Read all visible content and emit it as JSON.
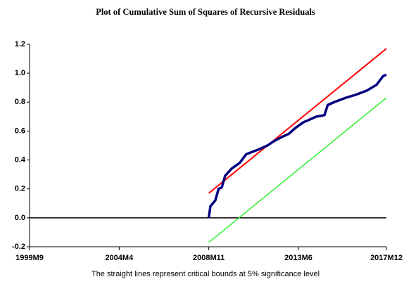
{
  "chart_data": {
    "type": "line",
    "title": "Plot of Cumulative Sum of Squares of Recursive Residuals",
    "note": "The straight lines represent critical bounds at 5% significance level",
    "xlim": [
      0,
      219
    ],
    "xticks": [
      {
        "value": 0,
        "label": "1999M9"
      },
      {
        "value": 55,
        "label": "2004M4"
      },
      {
        "value": 110,
        "label": "2008M11"
      },
      {
        "value": 165,
        "label": "2013M6"
      },
      {
        "value": 219,
        "label": "2017M12"
      }
    ],
    "ylim": [
      -0.2,
      1.2
    ],
    "yticks": [
      -0.2,
      {
        "value": 0,
        "label": "0.0"
      },
      0.2,
      0.4,
      0.6,
      0.8,
      {
        "value": 1,
        "label": "1.0"
      },
      1.2
    ],
    "zero_line": true,
    "series": [
      {
        "color": "#ff0000",
        "width": 2,
        "x": [
          110,
          219
        ],
        "values": [
          0.17,
          1.17
        ]
      },
      {
        "color": "#33ee33",
        "width": 1.5,
        "x": [
          110,
          219
        ],
        "values": [
          -0.17,
          0.83
        ]
      },
      {
        "color": "#000080",
        "width": 3.5,
        "x": [
          110,
          111,
          114,
          116,
          118,
          120,
          124,
          129,
          133,
          140,
          146,
          150,
          155,
          159,
          163,
          168,
          172,
          176,
          181,
          183,
          187,
          194,
          200,
          207,
          213,
          217,
          219
        ],
        "values": [
          0.0,
          0.08,
          0.12,
          0.2,
          0.21,
          0.29,
          0.34,
          0.38,
          0.44,
          0.47,
          0.5,
          0.53,
          0.56,
          0.58,
          0.62,
          0.66,
          0.68,
          0.7,
          0.71,
          0.78,
          0.8,
          0.83,
          0.85,
          0.88,
          0.92,
          0.98,
          0.99
        ]
      }
    ]
  }
}
